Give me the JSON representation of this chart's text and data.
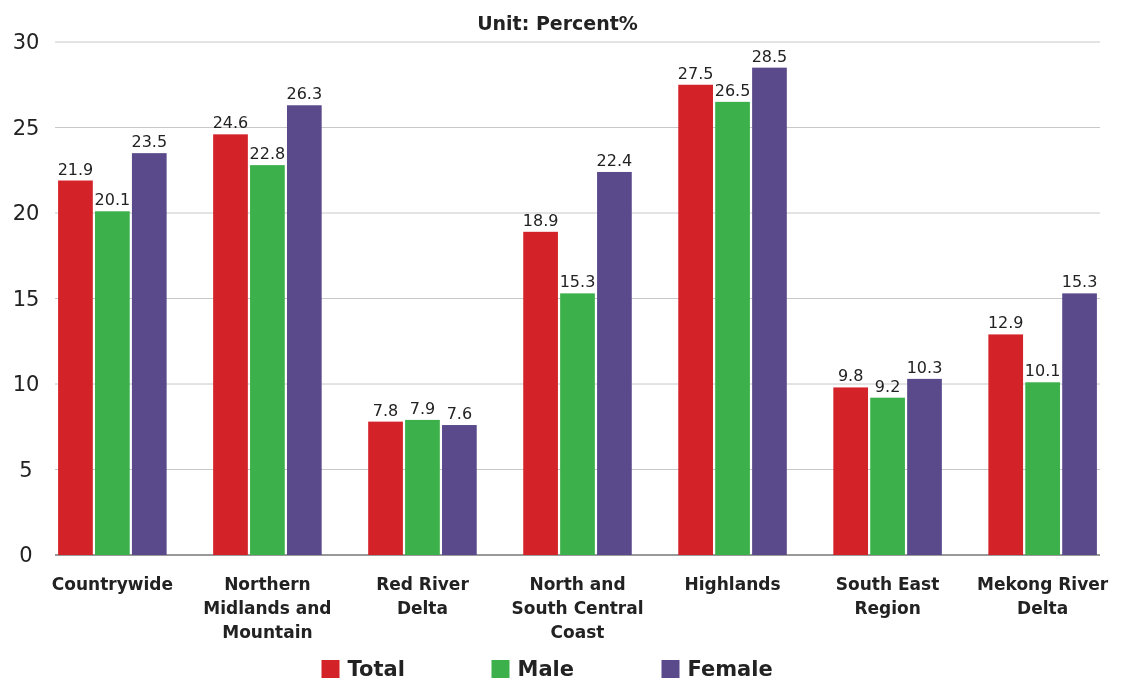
{
  "chart_data": {
    "type": "bar",
    "title": "Unit: Percent%",
    "categories": [
      "Countrywide",
      "Northern Midlands and Mountain",
      "Red River Delta",
      "North and South Central Coast",
      "Highlands",
      "South East Region",
      "Mekong River Delta"
    ],
    "series": [
      {
        "name": "Total",
        "color": "#d42229",
        "values": [
          21.9,
          24.6,
          7.8,
          18.9,
          27.5,
          9.8,
          12.9
        ]
      },
      {
        "name": "Male",
        "color": "#3cb04a",
        "values": [
          20.1,
          22.8,
          7.9,
          15.3,
          26.5,
          9.2,
          10.1
        ]
      },
      {
        "name": "Female",
        "color": "#5a4a8c",
        "values": [
          23.5,
          26.3,
          7.6,
          22.4,
          28.5,
          10.3,
          15.3
        ]
      }
    ],
    "ylim": [
      0,
      30
    ],
    "yticks": [
      0,
      5,
      10,
      15,
      20,
      25,
      30
    ],
    "grid": "y",
    "legend": "bottom",
    "data_labels": true
  }
}
